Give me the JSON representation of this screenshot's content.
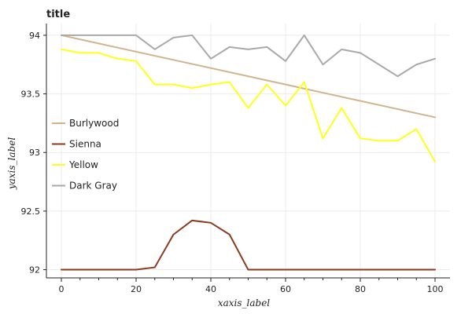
{
  "chart_data": {
    "type": "line",
    "title": "title",
    "xlabel": "xaxis_label",
    "ylabel": "yaxis_label",
    "xlim": [
      -4,
      104
    ],
    "ylim": [
      91.93,
      94.1
    ],
    "x_ticks": [
      0,
      20,
      40,
      60,
      80,
      100
    ],
    "x_tick_labels": [
      "0",
      "20",
      "40",
      "60",
      "80",
      "100"
    ],
    "y_ticks": [
      92,
      92.5,
      93,
      93.5,
      94
    ],
    "y_tick_labels": [
      "92",
      "92.5",
      "93",
      "93.5",
      "94"
    ],
    "grid": true,
    "legend_position": "center-left",
    "series": [
      {
        "name": "Burlywood",
        "color": "#d2b48c",
        "x": [
          0,
          100
        ],
        "y": [
          94.0,
          93.3
        ]
      },
      {
        "name": "Sienna",
        "color": "#8b3a1f",
        "x": [
          0,
          5,
          10,
          15,
          20,
          25,
          30,
          35,
          40,
          45,
          50,
          55,
          60,
          65,
          70,
          75,
          80,
          85,
          90,
          95,
          100
        ],
        "y": [
          92.0,
          92.0,
          92.0,
          92.0,
          92.0,
          92.02,
          92.3,
          92.42,
          92.4,
          92.3,
          92.0,
          92.0,
          92.0,
          92.0,
          92.0,
          92.0,
          92.0,
          92.0,
          92.0,
          92.0,
          92.0
        ]
      },
      {
        "name": "Yellow",
        "color": "#ffff1a",
        "x": [
          0,
          5,
          10,
          15,
          20,
          25,
          30,
          35,
          40,
          45,
          50,
          55,
          60,
          65,
          70,
          75,
          80,
          85,
          90,
          95,
          100
        ],
        "y": [
          93.88,
          93.85,
          93.85,
          93.8,
          93.78,
          93.58,
          93.58,
          93.55,
          93.58,
          93.6,
          93.38,
          93.58,
          93.4,
          93.6,
          93.12,
          93.38,
          93.12,
          93.1,
          93.1,
          93.2,
          92.92
        ]
      },
      {
        "name": "Dark Gray",
        "color": "#a9a9a9",
        "x": [
          0,
          5,
          10,
          15,
          20,
          25,
          30,
          35,
          40,
          45,
          50,
          55,
          60,
          65,
          70,
          75,
          80,
          85,
          90,
          95,
          100
        ],
        "y": [
          94.0,
          94.0,
          94.0,
          94.0,
          94.0,
          93.88,
          93.98,
          94.0,
          93.8,
          93.9,
          93.88,
          93.9,
          93.78,
          94.0,
          93.75,
          93.88,
          93.85,
          93.75,
          93.65,
          93.75,
          93.8
        ]
      }
    ]
  }
}
